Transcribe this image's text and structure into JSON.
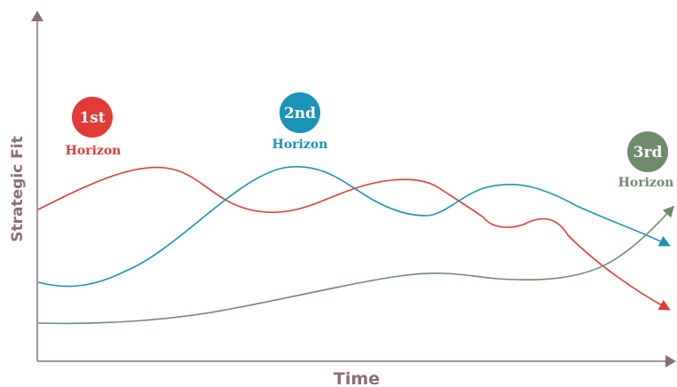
{
  "axes": {
    "x_label": "Time",
    "y_label": "Strategic Fit",
    "color": "#8b6f74"
  },
  "horizons": [
    {
      "number": "1st",
      "label": "Horizon",
      "color": "#e23b37"
    },
    {
      "number": "2nd",
      "label": "Horizon",
      "color": "#1a93b8"
    },
    {
      "number": "3rd",
      "label": "Horizon",
      "color": "#6e8c6c"
    }
  ]
}
